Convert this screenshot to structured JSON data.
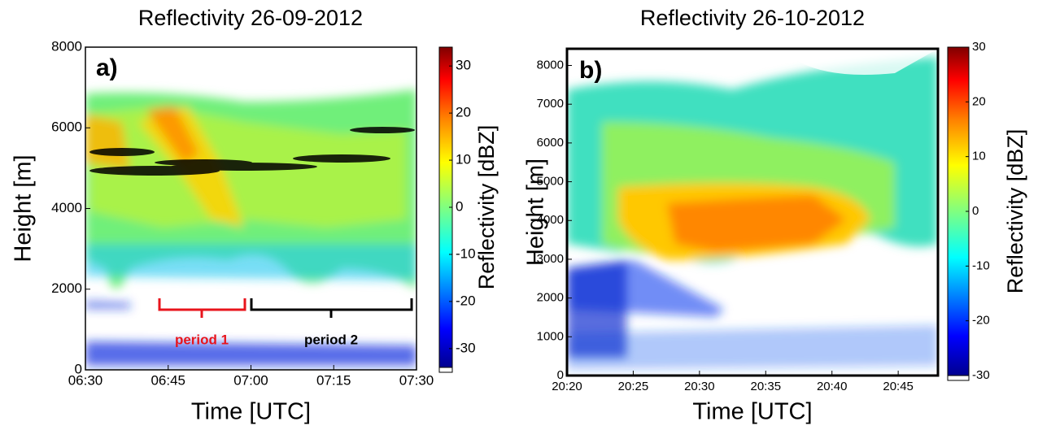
{
  "chart_data": [
    {
      "type": "heatmap",
      "title": "Reflectivity 26-09-2012",
      "xlabel": "Time [UTC]",
      "ylabel": "Height [m]",
      "colorbar_label": "Reflectivity [dBZ]",
      "colormap": "jet",
      "panel_label": "a)",
      "xlim": [
        "06:30",
        "07:30"
      ],
      "xticks": [
        "06:30",
        "06:45",
        "07:00",
        "07:15",
        "07:30"
      ],
      "ylim": [
        0,
        8000
      ],
      "yticks": [
        0,
        2000,
        4000,
        6000,
        8000
      ],
      "clim": [
        -34,
        34
      ],
      "cticks": [
        -30,
        -20,
        -10,
        0,
        10,
        20,
        30
      ],
      "annotations": [
        {
          "text": "period 1",
          "color": "#e8141c"
        },
        {
          "text": "period 2",
          "color": "#000000"
        }
      ]
    },
    {
      "type": "heatmap",
      "title": "Reflectivity 26-10-2012",
      "xlabel": "Time [UTC]",
      "ylabel": "Height [m]",
      "colorbar_label": "Reflectivity [dBZ]",
      "colormap": "jet",
      "panel_label": "b)",
      "xlim": [
        "20:20",
        "20:48"
      ],
      "xticks": [
        "20:20",
        "20:25",
        "20:30",
        "20:35",
        "20:40",
        "20:45"
      ],
      "ylim": [
        0,
        8430
      ],
      "yticks": [
        0,
        1000,
        2000,
        3000,
        4000,
        5000,
        6000,
        7000,
        8000
      ],
      "clim": [
        -30,
        30
      ],
      "cticks": [
        -30,
        -20,
        -10,
        0,
        10,
        20,
        30
      ]
    }
  ]
}
